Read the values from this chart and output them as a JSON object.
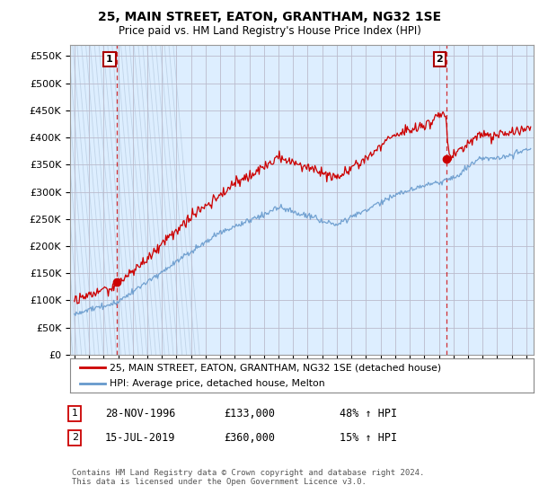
{
  "title": "25, MAIN STREET, EATON, GRANTHAM, NG32 1SE",
  "subtitle": "Price paid vs. HM Land Registry's House Price Index (HPI)",
  "ylabel_ticks": [
    "£0",
    "£50K",
    "£100K",
    "£150K",
    "£200K",
    "£250K",
    "£300K",
    "£350K",
    "£400K",
    "£450K",
    "£500K",
    "£550K"
  ],
  "ytick_values": [
    0,
    50000,
    100000,
    150000,
    200000,
    250000,
    300000,
    350000,
    400000,
    450000,
    500000,
    550000
  ],
  "ylim": [
    0,
    570000
  ],
  "xlim_start": 1993.7,
  "xlim_end": 2025.5,
  "sale1_date": 1996.91,
  "sale1_price": 133000,
  "sale2_date": 2019.54,
  "sale2_price": 360000,
  "legend_line1": "25, MAIN STREET, EATON, GRANTHAM, NG32 1SE (detached house)",
  "legend_line2": "HPI: Average price, detached house, Melton",
  "table_row1_num": "1",
  "table_row1_date": "28-NOV-1996",
  "table_row1_price": "£133,000",
  "table_row1_hpi": "48% ↑ HPI",
  "table_row2_num": "2",
  "table_row2_date": "15-JUL-2019",
  "table_row2_price": "£360,000",
  "table_row2_hpi": "15% ↑ HPI",
  "footnote": "Contains HM Land Registry data © Crown copyright and database right 2024.\nThis data is licensed under the Open Government Licence v3.0.",
  "red_color": "#cc0000",
  "blue_color": "#6699cc",
  "plot_bg_color": "#ddeeff",
  "background_color": "#ffffff",
  "hatch_color": "#c0d4e8",
  "grid_color": "#bbbbcc"
}
